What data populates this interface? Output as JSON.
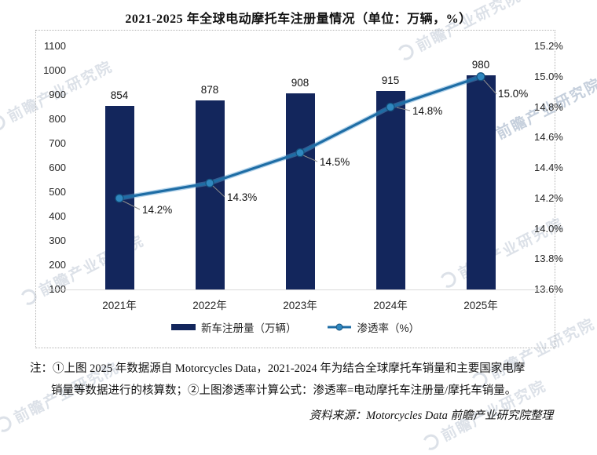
{
  "title": "2021-2025 年全球电动摩托车注册量情况（单位：万辆，%）",
  "watermark_text": "前瞻产业研究院",
  "chart_data": {
    "type": "combo-bar-line",
    "categories": [
      "2021年",
      "2022年",
      "2023年",
      "2024年",
      "2025年"
    ],
    "series": [
      {
        "name": "新车注册量（万辆）",
        "chart": "bar",
        "axis": "left",
        "color": "#13265c",
        "values": [
          854,
          878,
          908,
          915,
          980
        ],
        "labels": [
          "854",
          "878",
          "908",
          "915",
          "980"
        ]
      },
      {
        "name": "渗透率（%）",
        "chart": "line",
        "axis": "right",
        "color": "#1e6da5",
        "marker_color": "#2f87bf",
        "values": [
          14.2,
          14.3,
          14.5,
          14.8,
          15.0
        ],
        "labels": [
          "14.2%",
          "14.3%",
          "14.5%",
          "14.8%",
          "15.0%"
        ]
      }
    ],
    "left_axis": {
      "min": 100,
      "max": 1100,
      "step": 100,
      "ticks": [
        "1100",
        "1000",
        "900",
        "800",
        "700",
        "600",
        "500",
        "400",
        "300",
        "200",
        "100"
      ]
    },
    "right_axis": {
      "min": 13.6,
      "max": 15.2,
      "step": 0.2,
      "ticks": [
        "15.2%",
        "15.0%",
        "14.8%",
        "14.6%",
        "14.4%",
        "14.2%",
        "14.0%",
        "13.8%",
        "13.6%"
      ]
    },
    "grid": false,
    "baseline_color": "#d9d9d9",
    "legend_position": "bottom-center"
  },
  "notes": {
    "line1": "注：①上图 2025 年数据源自 Motorcycles Data，2021-2024 年为结合全球摩托车销量和主要国家电摩",
    "line2": "销量等数据进行的核算数；②上图渗透率计算公式：渗透率=电动摩托车注册量/摩托车销量。"
  },
  "source": "资料来源：Motorcycles Data 前瞻产业研究院整理"
}
